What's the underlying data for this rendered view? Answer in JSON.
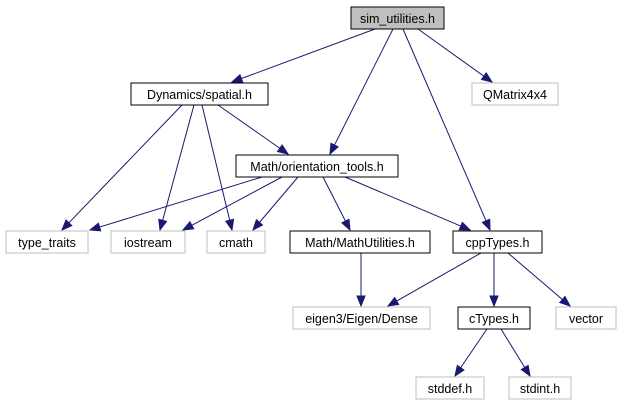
{
  "diagram": {
    "colors": {
      "edge": "#191970",
      "root_fill": "#bfbfbf",
      "internal_border": "#000000",
      "external_border": "#bfbfbf",
      "background": "#ffffff"
    },
    "nodes": [
      {
        "id": "sim_utilities",
        "label": "sim_utilities.h",
        "kind": "root"
      },
      {
        "id": "spatial",
        "label": "Dynamics/spatial.h",
        "kind": "internal"
      },
      {
        "id": "qmatrix",
        "label": "QMatrix4x4",
        "kind": "external"
      },
      {
        "id": "orientation",
        "label": "Math/orientation_tools.h",
        "kind": "internal"
      },
      {
        "id": "type_traits",
        "label": "type_traits",
        "kind": "external"
      },
      {
        "id": "iostream",
        "label": "iostream",
        "kind": "external"
      },
      {
        "id": "cmath",
        "label": "cmath",
        "kind": "external"
      },
      {
        "id": "mathutils",
        "label": "Math/MathUtilities.h",
        "kind": "internal"
      },
      {
        "id": "cpptypes",
        "label": "cppTypes.h",
        "kind": "internal"
      },
      {
        "id": "eigen",
        "label": "eigen3/Eigen/Dense",
        "kind": "external"
      },
      {
        "id": "ctypes",
        "label": "cTypes.h",
        "kind": "internal"
      },
      {
        "id": "vector",
        "label": "vector",
        "kind": "external"
      },
      {
        "id": "stddef",
        "label": "stddef.h",
        "kind": "external"
      },
      {
        "id": "stdint",
        "label": "stdint.h",
        "kind": "external"
      }
    ],
    "edges": [
      {
        "from": "sim_utilities",
        "to": "spatial"
      },
      {
        "from": "sim_utilities",
        "to": "orientation"
      },
      {
        "from": "sim_utilities",
        "to": "cpptypes"
      },
      {
        "from": "sim_utilities",
        "to": "qmatrix"
      },
      {
        "from": "spatial",
        "to": "type_traits"
      },
      {
        "from": "spatial",
        "to": "iostream"
      },
      {
        "from": "spatial",
        "to": "cmath"
      },
      {
        "from": "spatial",
        "to": "orientation"
      },
      {
        "from": "orientation",
        "to": "type_traits"
      },
      {
        "from": "orientation",
        "to": "iostream"
      },
      {
        "from": "orientation",
        "to": "cmath"
      },
      {
        "from": "orientation",
        "to": "mathutils"
      },
      {
        "from": "orientation",
        "to": "cpptypes"
      },
      {
        "from": "mathutils",
        "to": "eigen"
      },
      {
        "from": "cpptypes",
        "to": "eigen"
      },
      {
        "from": "cpptypes",
        "to": "ctypes"
      },
      {
        "from": "cpptypes",
        "to": "vector"
      },
      {
        "from": "ctypes",
        "to": "stddef"
      },
      {
        "from": "ctypes",
        "to": "stdint"
      }
    ]
  }
}
